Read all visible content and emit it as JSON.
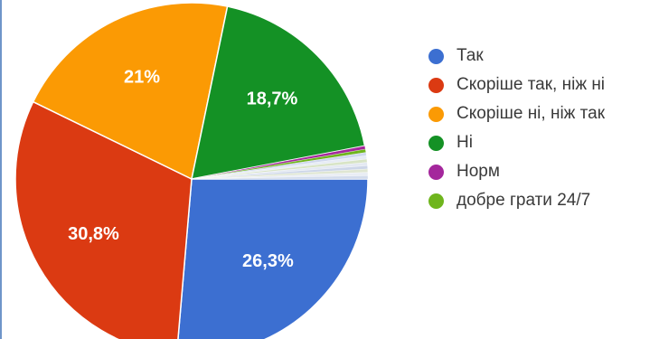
{
  "chart_data": {
    "type": "pie",
    "slices": [
      {
        "name": "Так",
        "value": 26.3,
        "label": "26,3%",
        "color": "#3c6fd1"
      },
      {
        "name": "Скоріше так, ніж ні",
        "value": 30.8,
        "label": "30,8%",
        "color": "#db3a12"
      },
      {
        "name": "Скоріше ні, ніж так",
        "value": 21.0,
        "label": "21%",
        "color": "#fb9a04"
      },
      {
        "name": "Ні",
        "value": 18.7,
        "label": "18,7%",
        "color": "#149125"
      },
      {
        "name": "Норм",
        "value": 0.3,
        "label": "",
        "color": "#a4279c"
      },
      {
        "name": "добре грати 24/7",
        "value": 0.3,
        "label": "",
        "color": "#6fb51d"
      },
      {
        "name": "",
        "value": 0.3,
        "label": "",
        "color": "#cfd8ee"
      },
      {
        "name": "",
        "value": 0.3,
        "label": "",
        "color": "#e7ecf5"
      },
      {
        "name": "",
        "value": 0.3,
        "label": "",
        "color": "#d8e4c6"
      },
      {
        "name": "",
        "value": 0.3,
        "label": "",
        "color": "#e4e9f2"
      },
      {
        "name": "",
        "value": 0.3,
        "label": "",
        "color": "#cdd6e8"
      },
      {
        "name": "",
        "value": 0.3,
        "label": "",
        "color": "#dfe6d2"
      },
      {
        "name": "",
        "value": 0.3,
        "label": "",
        "color": "#e9edf4"
      },
      {
        "name": "",
        "value": 0.3,
        "label": "",
        "color": "#d3dcec"
      }
    ],
    "legend": [
      "Так",
      "Скоріше так, ніж ні",
      "Скоріше ні, ніж так",
      "Ні",
      "Норм",
      "добре грати 24/7"
    ],
    "legend_position": "right"
  }
}
